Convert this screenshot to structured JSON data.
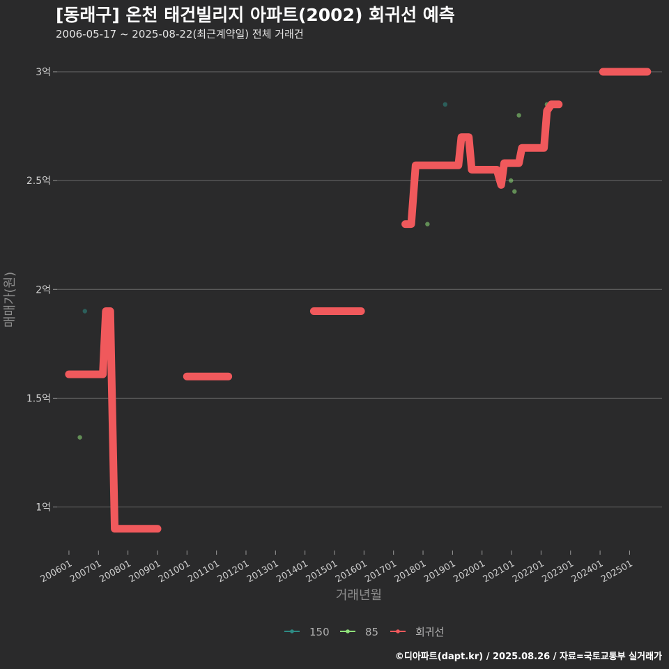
{
  "title": "[동래구] 온천 태건빌리지 아파트(2002) 회귀선 예측",
  "subtitle": "2006-05-17 ~ 2025-08-22(최근계약일) 전체 거래건",
  "caption": "©디아파트(dapt.kr) / 2025.08.26 / 자료=국토교통부 실거래가",
  "chart_data": {
    "type": "line",
    "title": "[동래구] 온천 태건빌리지 아파트(2002) 회귀선 예측",
    "xlabel": "거래년월",
    "ylabel": "매매가(원)",
    "x_ticks": [
      "200601",
      "200701",
      "200801",
      "200901",
      "201001",
      "201101",
      "201201",
      "201301",
      "201401",
      "201501",
      "201601",
      "201701",
      "201801",
      "201901",
      "202001",
      "202101",
      "202201",
      "202301",
      "202401",
      "202501"
    ],
    "y_ticks": [
      {
        "value": 1.0,
        "label": "1억"
      },
      {
        "value": 1.5,
        "label": "1.5억"
      },
      {
        "value": 2.0,
        "label": "2억"
      },
      {
        "value": 2.5,
        "label": "2.5억"
      },
      {
        "value": 3.0,
        "label": "3억"
      }
    ],
    "xlim": [
      2006.0,
      2025.6
    ],
    "ylim": [
      0.8,
      3.08
    ],
    "y_unit": "억",
    "legend": [
      {
        "name": "150",
        "color": "#2e8b84"
      },
      {
        "name": "85",
        "color": "#8fe07a"
      },
      {
        "name": "회귀선",
        "color": "#f0595c"
      }
    ],
    "points": [
      {
        "series": "150",
        "x": 2006.54,
        "y": 1.9
      },
      {
        "series": "150",
        "x": 2018.75,
        "y": 2.85
      },
      {
        "series": "85",
        "x": 2006.37,
        "y": 1.32
      },
      {
        "series": "85",
        "x": 2018.15,
        "y": 2.3
      },
      {
        "series": "85",
        "x": 2020.98,
        "y": 2.5
      },
      {
        "series": "85",
        "x": 2021.1,
        "y": 2.45
      },
      {
        "series": "85",
        "x": 2021.25,
        "y": 2.8
      },
      {
        "series": "85",
        "x": 2022.2,
        "y": 2.85
      }
    ],
    "regression_segments": [
      [
        [
          2006.0,
          1.61
        ],
        [
          2007.15,
          1.61
        ],
        [
          2007.25,
          1.9
        ],
        [
          2007.4,
          1.9
        ],
        [
          2007.55,
          0.9
        ],
        [
          2009.0,
          0.9
        ]
      ],
      [
        [
          2010.0,
          1.6
        ],
        [
          2011.4,
          1.6
        ]
      ],
      [
        [
          2014.3,
          1.9
        ],
        [
          2015.9,
          1.9
        ]
      ],
      [
        [
          2017.4,
          2.3
        ],
        [
          2017.6,
          2.3
        ],
        [
          2017.75,
          2.57
        ],
        [
          2019.2,
          2.57
        ],
        [
          2019.3,
          2.7
        ],
        [
          2019.55,
          2.7
        ],
        [
          2019.65,
          2.55
        ],
        [
          2020.5,
          2.55
        ],
        [
          2020.65,
          2.48
        ],
        [
          2020.75,
          2.58
        ],
        [
          2021.25,
          2.58
        ],
        [
          2021.35,
          2.65
        ],
        [
          2022.1,
          2.65
        ],
        [
          2022.2,
          2.82
        ],
        [
          2022.35,
          2.85
        ],
        [
          2022.6,
          2.85
        ]
      ],
      [
        [
          2024.1,
          3.0
        ],
        [
          2025.6,
          3.0
        ]
      ]
    ]
  }
}
